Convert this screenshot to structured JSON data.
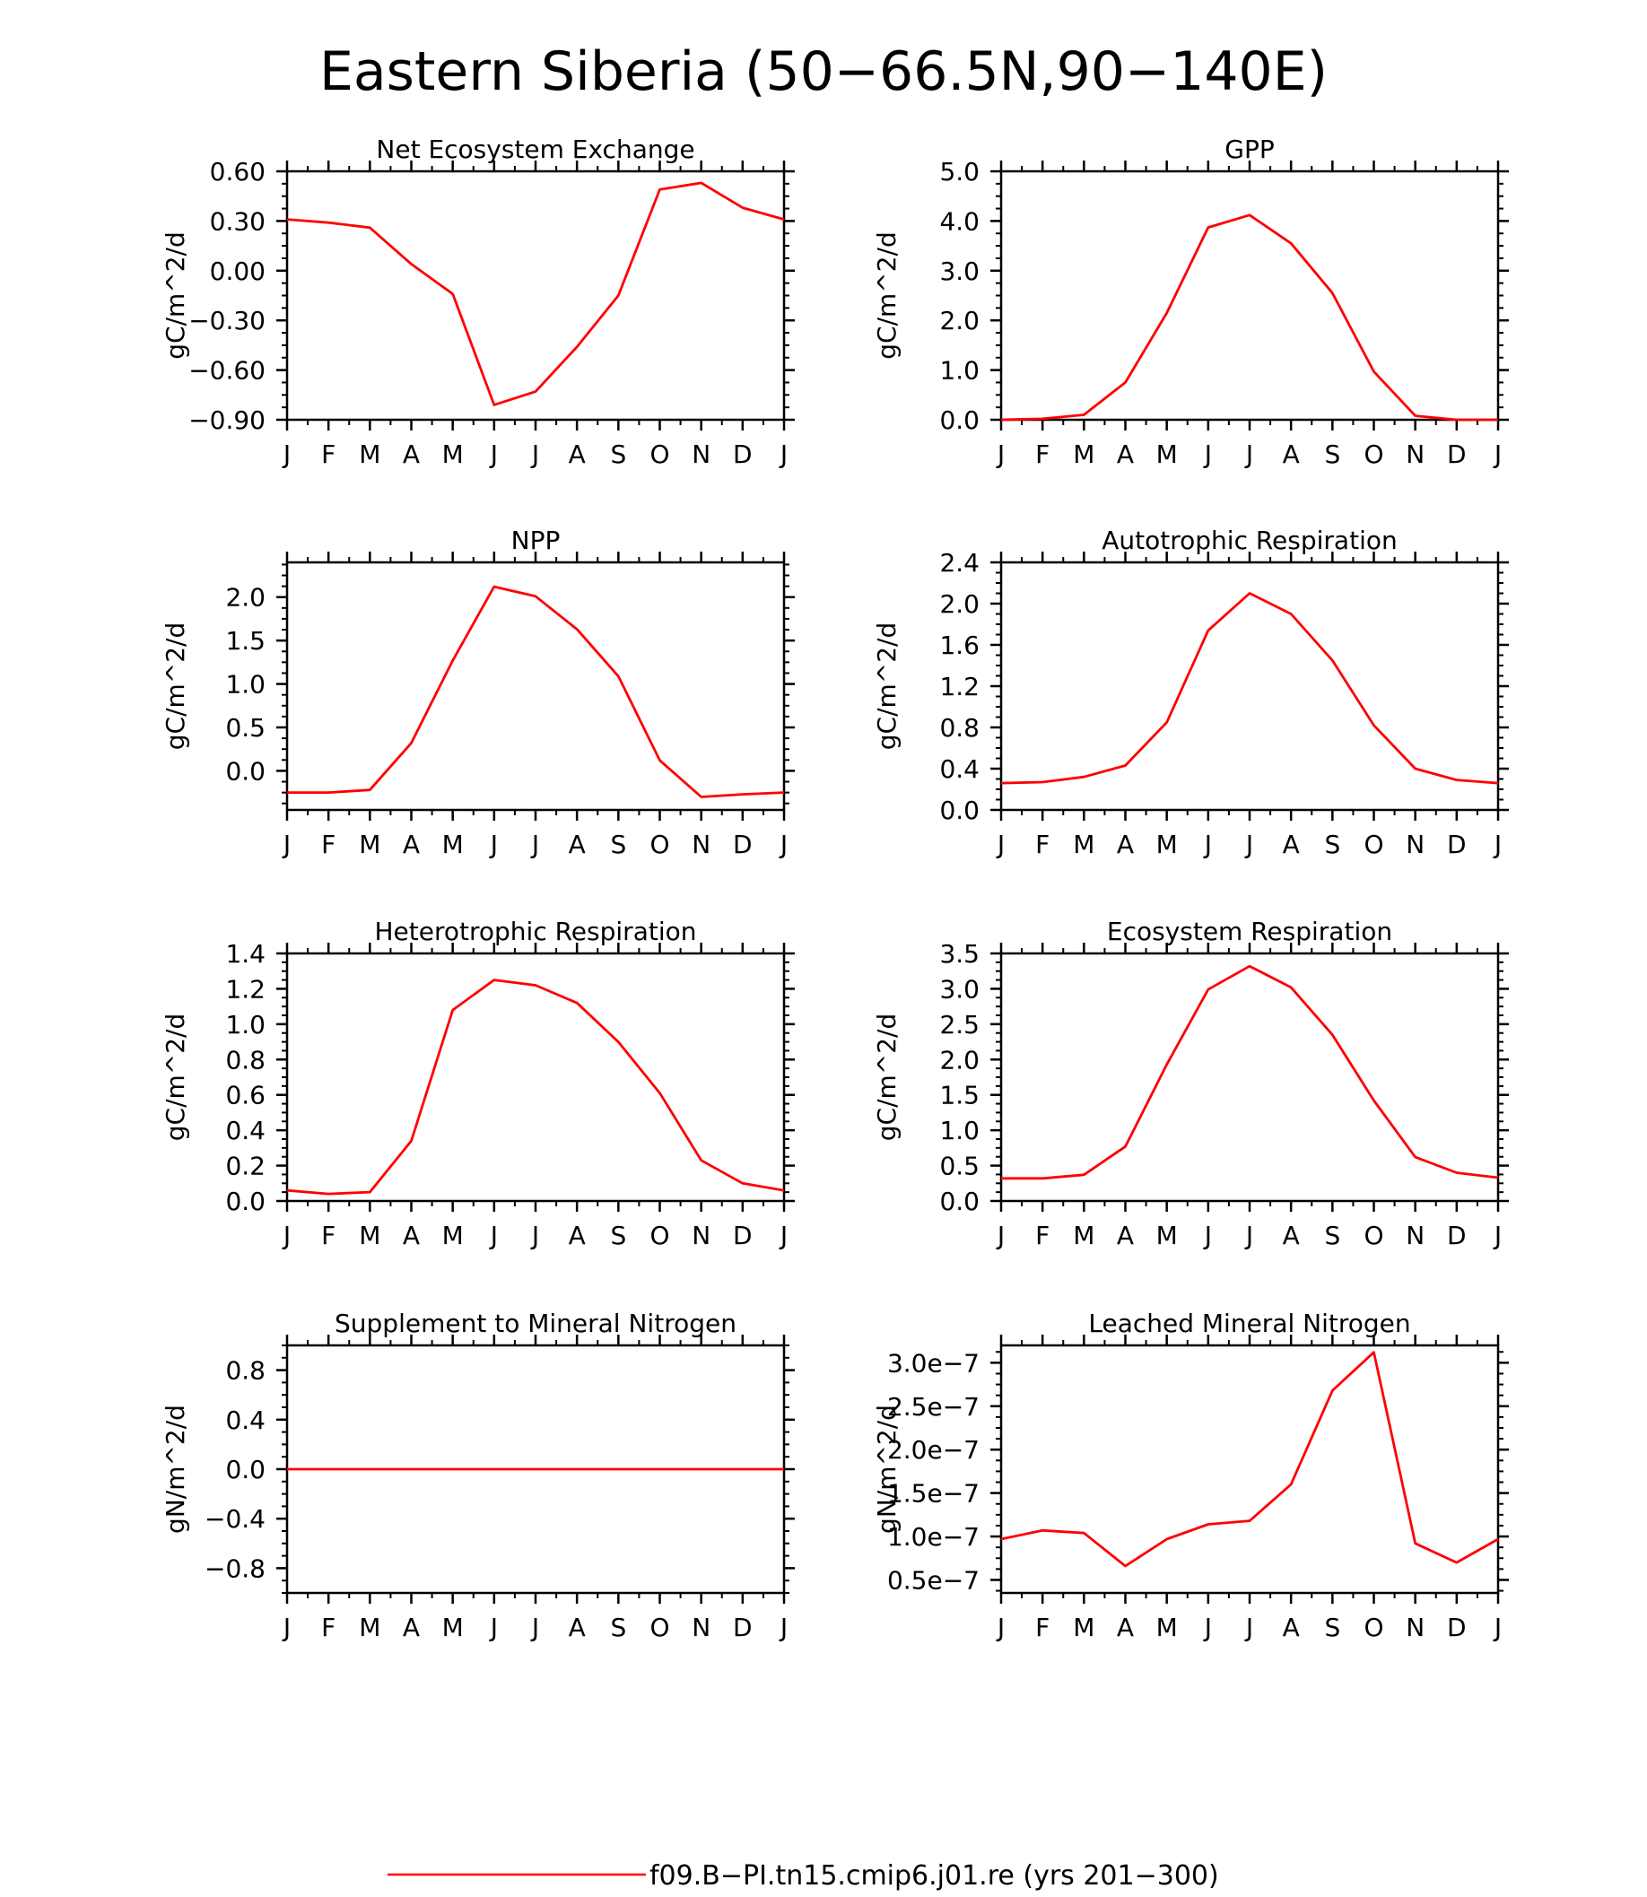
{
  "figure": {
    "title": "Eastern Siberia (50−66.5N,90−140E)",
    "line_color": "#ff0000"
  },
  "chart_data": [
    {
      "type": "line",
      "title": "Net Ecosystem Exchange",
      "ylabel": "gC/m^2/d",
      "xlabel": "",
      "categories": [
        "J",
        "F",
        "M",
        "A",
        "M",
        "J",
        "J",
        "A",
        "S",
        "O",
        "N",
        "D",
        "J"
      ],
      "ylim": [
        -0.9,
        0.6
      ],
      "yticks": [
        -0.9,
        -0.6,
        -0.3,
        0.0,
        0.3,
        0.6
      ],
      "ytick_labels": [
        "−0.90",
        "−0.60",
        "−0.30",
        "0.00",
        "0.30",
        "0.60"
      ],
      "minor_step": 0.075,
      "series": [
        {
          "values": [
            0.31,
            0.29,
            0.26,
            0.04,
            -0.14,
            -0.81,
            -0.73,
            -0.46,
            -0.15,
            0.49,
            0.53,
            0.38,
            0.31
          ]
        }
      ]
    },
    {
      "type": "line",
      "title": "GPP",
      "ylabel": "gC/m^2/d",
      "xlabel": "",
      "categories": [
        "J",
        "F",
        "M",
        "A",
        "M",
        "J",
        "J",
        "A",
        "S",
        "O",
        "N",
        "D",
        "J"
      ],
      "ylim": [
        0,
        5
      ],
      "yticks": [
        0,
        1,
        2,
        3,
        4,
        5
      ],
      "ytick_labels": [
        "0.0",
        "1.0",
        "2.0",
        "3.0",
        "4.0",
        "5.0"
      ],
      "minor_step": 0.25,
      "series": [
        {
          "values": [
            0.0,
            0.02,
            0.1,
            0.75,
            2.15,
            3.87,
            4.12,
            3.55,
            2.55,
            0.97,
            0.08,
            0.0,
            0.0
          ]
        }
      ]
    },
    {
      "type": "line",
      "title": "NPP",
      "ylabel": "gC/m^2/d",
      "xlabel": "",
      "categories": [
        "J",
        "F",
        "M",
        "A",
        "M",
        "J",
        "J",
        "A",
        "S",
        "O",
        "N",
        "D",
        "J"
      ],
      "ylim": [
        -0.45,
        2.4
      ],
      "yticks": [
        0.0,
        0.5,
        1.0,
        1.5,
        2.0
      ],
      "ytick_labels": [
        "0.0",
        "0.5",
        "1.0",
        "1.5",
        "2.0"
      ],
      "minor_step": 0.125,
      "series": [
        {
          "values": [
            -0.25,
            -0.25,
            -0.22,
            0.32,
            1.27,
            2.12,
            2.01,
            1.63,
            1.09,
            0.12,
            -0.3,
            -0.27,
            -0.25
          ]
        }
      ]
    },
    {
      "type": "line",
      "title": "Autotrophic Respiration",
      "ylabel": "gC/m^2/d",
      "xlabel": "",
      "categories": [
        "J",
        "F",
        "M",
        "A",
        "M",
        "J",
        "J",
        "A",
        "S",
        "O",
        "N",
        "D",
        "J"
      ],
      "ylim": [
        0,
        2.4
      ],
      "yticks": [
        0.0,
        0.4,
        0.8,
        1.2,
        1.6,
        2.0,
        2.4
      ],
      "ytick_labels": [
        "0.0",
        "0.4",
        "0.8",
        "1.2",
        "1.6",
        "2.0",
        "2.4"
      ],
      "minor_step": 0.1,
      "series": [
        {
          "values": [
            0.26,
            0.27,
            0.32,
            0.43,
            0.85,
            1.74,
            2.1,
            1.9,
            1.45,
            0.82,
            0.4,
            0.29,
            0.26
          ]
        }
      ]
    },
    {
      "type": "line",
      "title": "Heterotrophic Respiration",
      "ylabel": "gC/m^2/d",
      "xlabel": "",
      "categories": [
        "J",
        "F",
        "M",
        "A",
        "M",
        "J",
        "J",
        "A",
        "S",
        "O",
        "N",
        "D",
        "J"
      ],
      "ylim": [
        0,
        1.4
      ],
      "yticks": [
        0.0,
        0.2,
        0.4,
        0.6,
        0.8,
        1.0,
        1.2,
        1.4
      ],
      "ytick_labels": [
        "0.0",
        "0.2",
        "0.4",
        "0.6",
        "0.8",
        "1.0",
        "1.2",
        "1.4"
      ],
      "minor_step": 0.05,
      "series": [
        {
          "values": [
            0.06,
            0.04,
            0.05,
            0.34,
            1.08,
            1.25,
            1.22,
            1.12,
            0.9,
            0.61,
            0.23,
            0.1,
            0.06
          ]
        }
      ]
    },
    {
      "type": "line",
      "title": "Ecosystem Respiration",
      "ylabel": "gC/m^2/d",
      "xlabel": "",
      "categories": [
        "J",
        "F",
        "M",
        "A",
        "M",
        "J",
        "J",
        "A",
        "S",
        "O",
        "N",
        "D",
        "J"
      ],
      "ylim": [
        0,
        3.5
      ],
      "yticks": [
        0.0,
        0.5,
        1.0,
        1.5,
        2.0,
        2.5,
        3.0,
        3.5
      ],
      "ytick_labels": [
        "0.0",
        "0.5",
        "1.0",
        "1.5",
        "2.0",
        "2.5",
        "3.0",
        "3.5"
      ],
      "minor_step": 0.125,
      "series": [
        {
          "values": [
            0.32,
            0.32,
            0.37,
            0.77,
            1.93,
            2.99,
            3.32,
            3.02,
            2.35,
            1.42,
            0.62,
            0.4,
            0.33
          ]
        }
      ]
    },
    {
      "type": "line",
      "title": "Supplement to Mineral Nitrogen",
      "ylabel": "gN/m^2/d",
      "xlabel": "",
      "categories": [
        "J",
        "F",
        "M",
        "A",
        "M",
        "J",
        "J",
        "A",
        "S",
        "O",
        "N",
        "D",
        "J"
      ],
      "ylim": [
        -1.0,
        1.0
      ],
      "yticks": [
        -0.8,
        -0.4,
        0.0,
        0.4,
        0.8
      ],
      "ytick_labels": [
        "−0.8",
        "−0.4",
        "0.0",
        "0.4",
        "0.8"
      ],
      "minor_step": 0.1,
      "series": [
        {
          "values": [
            0,
            0,
            0,
            0,
            0,
            0,
            0,
            0,
            0,
            0,
            0,
            0,
            0
          ]
        }
      ]
    },
    {
      "type": "line",
      "title": "Leached Mineral Nitrogen",
      "ylabel": "gN/m^2/d",
      "xlabel": "",
      "categories": [
        "J",
        "F",
        "M",
        "A",
        "M",
        "J",
        "J",
        "A",
        "S",
        "O",
        "N",
        "D",
        "J"
      ],
      "ylim": [
        3.5e-08,
        3.2e-07
      ],
      "yticks": [
        5e-08,
        1e-07,
        1.5e-07,
        2e-07,
        2.5e-07,
        3e-07
      ],
      "ytick_labels": [
        "0.5e−7",
        "1.0e−7",
        "1.5e−7",
        "2.0e−7",
        "2.5e−7",
        "3.0e−7"
      ],
      "minor_step": 1.25e-08,
      "series": [
        {
          "values": [
            9.7e-08,
            1.07e-07,
            1.04e-07,
            6.6e-08,
            9.7e-08,
            1.14e-07,
            1.18e-07,
            1.6e-07,
            2.68e-07,
            3.12e-07,
            9.2e-08,
            7e-08,
            9.7e-08
          ]
        }
      ]
    }
  ],
  "legend": {
    "label": "f09.B−PI.tn15.cmip6.j01.re (yrs 201−300)",
    "color": "#ff0000"
  }
}
